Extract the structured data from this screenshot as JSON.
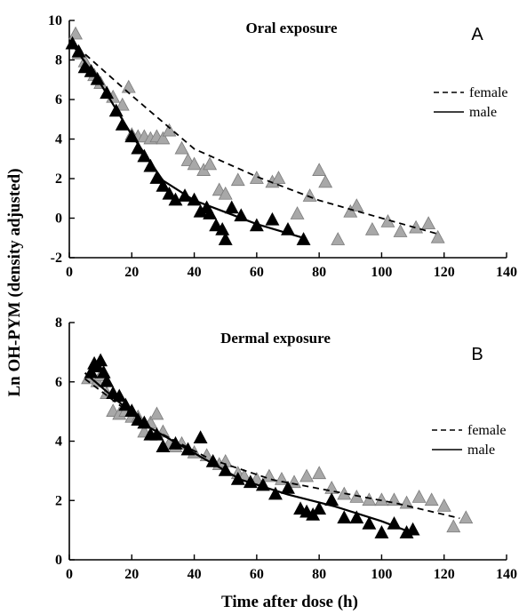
{
  "figure": {
    "ylabel": "Ln OH-PYM (density adjusted)",
    "xlabel": "Time after dose (h)"
  },
  "chart_data": [
    {
      "type": "scatter",
      "title": "Oral exposure",
      "panel_label": "A",
      "xlim": [
        0,
        140
      ],
      "ylim": [
        -2,
        10
      ],
      "x_ticks": [
        0,
        20,
        40,
        60,
        80,
        100,
        120,
        140
      ],
      "y_ticks": [
        -2,
        0,
        2,
        4,
        6,
        8,
        10
      ],
      "legend": {
        "placement": "right",
        "entries": [
          {
            "label": "female",
            "style": "dashed"
          },
          {
            "label": "male",
            "style": "solid"
          }
        ]
      },
      "series": [
        {
          "name": "female",
          "marker": "triangle",
          "color": "#a8a8a8",
          "points": [
            [
              2,
              9.3
            ],
            [
              3,
              8.3
            ],
            [
              5,
              7.9
            ],
            [
              8,
              7.2
            ],
            [
              10,
              6.8
            ],
            [
              14,
              6.1
            ],
            [
              17,
              5.7
            ],
            [
              19,
              6.6
            ],
            [
              20,
              4.2
            ],
            [
              22,
              4.1
            ],
            [
              24,
              4.1
            ],
            [
              26,
              4.0
            ],
            [
              28,
              4.1
            ],
            [
              30,
              4.0
            ],
            [
              32,
              4.4
            ],
            [
              36,
              3.5
            ],
            [
              38,
              2.9
            ],
            [
              40,
              2.7
            ],
            [
              43,
              2.4
            ],
            [
              45,
              2.7
            ],
            [
              48,
              1.4
            ],
            [
              50,
              1.2
            ],
            [
              54,
              1.9
            ],
            [
              60,
              2.0
            ],
            [
              65,
              1.8
            ],
            [
              67,
              2.0
            ],
            [
              73,
              0.2
            ],
            [
              77,
              1.1
            ],
            [
              80,
              2.4
            ],
            [
              82,
              1.8
            ],
            [
              86,
              -1.1
            ],
            [
              90,
              0.3
            ],
            [
              92,
              0.6
            ],
            [
              97,
              -0.6
            ],
            [
              102,
              -0.2
            ],
            [
              106,
              -0.7
            ],
            [
              111,
              -0.5
            ],
            [
              115,
              -0.3
            ],
            [
              118,
              -1.0
            ]
          ]
        },
        {
          "name": "male",
          "marker": "triangle",
          "color": "#000000",
          "points": [
            [
              1,
              8.8
            ],
            [
              3,
              8.4
            ],
            [
              5,
              7.6
            ],
            [
              7,
              7.4
            ],
            [
              9,
              7.0
            ],
            [
              12,
              6.3
            ],
            [
              15,
              5.4
            ],
            [
              17,
              4.7
            ],
            [
              20,
              4.1
            ],
            [
              22,
              3.5
            ],
            [
              24,
              3.1
            ],
            [
              26,
              2.6
            ],
            [
              28,
              2.0
            ],
            [
              30,
              1.6
            ],
            [
              32,
              1.2
            ],
            [
              34,
              0.9
            ],
            [
              37,
              1.1
            ],
            [
              40,
              0.9
            ],
            [
              42,
              0.3
            ],
            [
              44,
              0.5
            ],
            [
              45,
              0.2
            ],
            [
              47,
              -0.4
            ],
            [
              49,
              -0.6
            ],
            [
              50,
              -1.1
            ],
            [
              52,
              0.5
            ],
            [
              55,
              0.1
            ],
            [
              60,
              -0.4
            ],
            [
              65,
              -0.1
            ],
            [
              70,
              -0.6
            ],
            [
              75,
              -1.1
            ]
          ]
        }
      ],
      "fit_lines": [
        {
          "name": "female",
          "style": "dashed",
          "points": [
            [
              0,
              9.0
            ],
            [
              20,
              6.2
            ],
            [
              40,
              3.5
            ],
            [
              60,
              2.1
            ],
            [
              80,
              0.9
            ],
            [
              100,
              0.0
            ],
            [
              118,
              -0.8
            ]
          ]
        },
        {
          "name": "male",
          "style": "solid",
          "points": [
            [
              0,
              9.0
            ],
            [
              10,
              6.8
            ],
            [
              20,
              4.2
            ],
            [
              30,
              1.9
            ],
            [
              40,
              0.9
            ],
            [
              50,
              0.3
            ],
            [
              60,
              -0.3
            ],
            [
              75,
              -1.0
            ]
          ]
        }
      ]
    },
    {
      "type": "scatter",
      "title": "Dermal exposure",
      "panel_label": "B",
      "xlim": [
        0,
        140
      ],
      "ylim": [
        0,
        8
      ],
      "x_ticks": [
        0,
        20,
        40,
        60,
        80,
        100,
        120,
        140
      ],
      "y_ticks": [
        0,
        2,
        4,
        6,
        8
      ],
      "legend": {
        "placement": "right",
        "entries": [
          {
            "label": "female",
            "style": "dashed"
          },
          {
            "label": "male",
            "style": "solid"
          }
        ]
      },
      "series": [
        {
          "name": "female",
          "marker": "triangle",
          "color": "#a8a8a8",
          "points": [
            [
              6,
              6.1
            ],
            [
              7,
              6.3
            ],
            [
              8,
              6.5
            ],
            [
              9,
              6.0
            ],
            [
              10,
              6.2
            ],
            [
              12,
              5.6
            ],
            [
              14,
              5.0
            ],
            [
              16,
              4.9
            ],
            [
              18,
              5.0
            ],
            [
              20,
              4.8
            ],
            [
              22,
              4.8
            ],
            [
              24,
              4.3
            ],
            [
              26,
              4.6
            ],
            [
              28,
              4.9
            ],
            [
              30,
              4.3
            ],
            [
              32,
              3.9
            ],
            [
              34,
              3.8
            ],
            [
              36,
              3.9
            ],
            [
              38,
              3.7
            ],
            [
              40,
              3.6
            ],
            [
              44,
              3.5
            ],
            [
              48,
              3.2
            ],
            [
              50,
              3.3
            ],
            [
              54,
              2.9
            ],
            [
              56,
              2.8
            ],
            [
              60,
              2.7
            ],
            [
              64,
              2.8
            ],
            [
              68,
              2.7
            ],
            [
              72,
              2.6
            ],
            [
              76,
              2.8
            ],
            [
              80,
              2.9
            ],
            [
              84,
              2.4
            ],
            [
              88,
              2.2
            ],
            [
              92,
              2.1
            ],
            [
              96,
              2.0
            ],
            [
              100,
              2.0
            ],
            [
              104,
              2.0
            ],
            [
              108,
              1.9
            ],
            [
              112,
              2.1
            ],
            [
              116,
              2.0
            ],
            [
              120,
              1.8
            ],
            [
              123,
              1.1
            ],
            [
              127,
              1.4
            ]
          ]
        },
        {
          "name": "male",
          "marker": "triangle",
          "color": "#000000",
          "points": [
            [
              7,
              6.3
            ],
            [
              8,
              6.6
            ],
            [
              9,
              6.5
            ],
            [
              10,
              6.7
            ],
            [
              11,
              6.3
            ],
            [
              12,
              6.0
            ],
            [
              14,
              5.6
            ],
            [
              16,
              5.5
            ],
            [
              18,
              5.2
            ],
            [
              20,
              5.0
            ],
            [
              22,
              4.7
            ],
            [
              24,
              4.6
            ],
            [
              26,
              4.2
            ],
            [
              28,
              4.2
            ],
            [
              30,
              3.8
            ],
            [
              34,
              3.9
            ],
            [
              38,
              3.7
            ],
            [
              42,
              4.1
            ],
            [
              46,
              3.3
            ],
            [
              50,
              3.0
            ],
            [
              54,
              2.7
            ],
            [
              58,
              2.6
            ],
            [
              62,
              2.5
            ],
            [
              66,
              2.2
            ],
            [
              70,
              2.4
            ],
            [
              74,
              1.7
            ],
            [
              76,
              1.6
            ],
            [
              78,
              1.5
            ],
            [
              80,
              1.7
            ],
            [
              84,
              2.0
            ],
            [
              88,
              1.4
            ],
            [
              92,
              1.4
            ],
            [
              96,
              1.2
            ],
            [
              100,
              0.9
            ],
            [
              104,
              1.2
            ],
            [
              108,
              0.9
            ],
            [
              110,
              1.0
            ]
          ]
        }
      ],
      "fit_lines": [
        {
          "name": "female",
          "style": "dashed",
          "points": [
            [
              5,
              6.1
            ],
            [
              25,
              4.5
            ],
            [
              45,
              3.4
            ],
            [
              65,
              2.7
            ],
            [
              85,
              2.3
            ],
            [
              105,
              1.9
            ],
            [
              125,
              1.4
            ]
          ]
        },
        {
          "name": "male",
          "style": "solid",
          "points": [
            [
              5,
              6.3
            ],
            [
              25,
              4.5
            ],
            [
              40,
              3.6
            ],
            [
              55,
              2.7
            ],
            [
              70,
              2.2
            ],
            [
              85,
              1.8
            ],
            [
              100,
              1.3
            ],
            [
              110,
              0.9
            ]
          ]
        }
      ]
    }
  ]
}
